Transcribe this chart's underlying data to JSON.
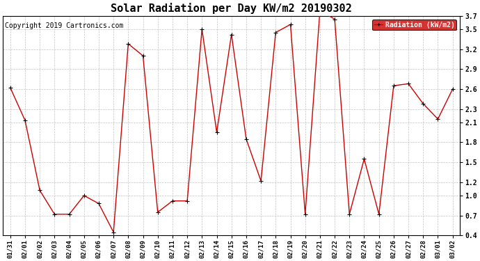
{
  "title": "Solar Radiation per Day KW/m2 20190302",
  "copyright_text": "Copyright 2019 Cartronics.com",
  "legend_label": "Radiation (kW/m2)",
  "dates": [
    "01/31",
    "02/01",
    "02/02",
    "02/03",
    "02/04",
    "02/05",
    "02/06",
    "02/07",
    "02/08",
    "02/09",
    "02/10",
    "02/11",
    "02/12",
    "02/13",
    "02/14",
    "02/15",
    "02/16",
    "02/17",
    "02/18",
    "02/19",
    "02/20",
    "02/21",
    "02/22",
    "02/23",
    "02/24",
    "02/25",
    "02/26",
    "02/27",
    "02/28",
    "03/01",
    "03/02"
  ],
  "values": [
    2.62,
    2.13,
    1.08,
    0.72,
    0.72,
    1.0,
    0.88,
    0.45,
    3.28,
    3.1,
    0.75,
    0.92,
    0.92,
    3.5,
    1.95,
    3.42,
    1.85,
    1.22,
    3.45,
    3.57,
    0.72,
    3.78,
    3.65,
    0.72,
    1.55,
    0.72,
    2.65,
    2.68,
    2.38,
    2.15,
    2.6
  ],
  "ylim_min": 0.4,
  "ylim_max": 3.7,
  "yticks": [
    0.4,
    0.7,
    1.0,
    1.2,
    1.5,
    1.8,
    2.1,
    2.3,
    2.6,
    2.9,
    3.2,
    3.5,
    3.7
  ],
  "line_color": "#cc0000",
  "marker_color": "#000000",
  "grid_color": "#bbbbbb",
  "bg_color": "#ffffff",
  "legend_bg": "#cc0000",
  "legend_text_color": "#ffffff",
  "copyright_color": "#000000",
  "title_fontsize": 11,
  "tick_fontsize": 6.5,
  "ytick_fontsize": 7,
  "copyright_fontsize": 7
}
